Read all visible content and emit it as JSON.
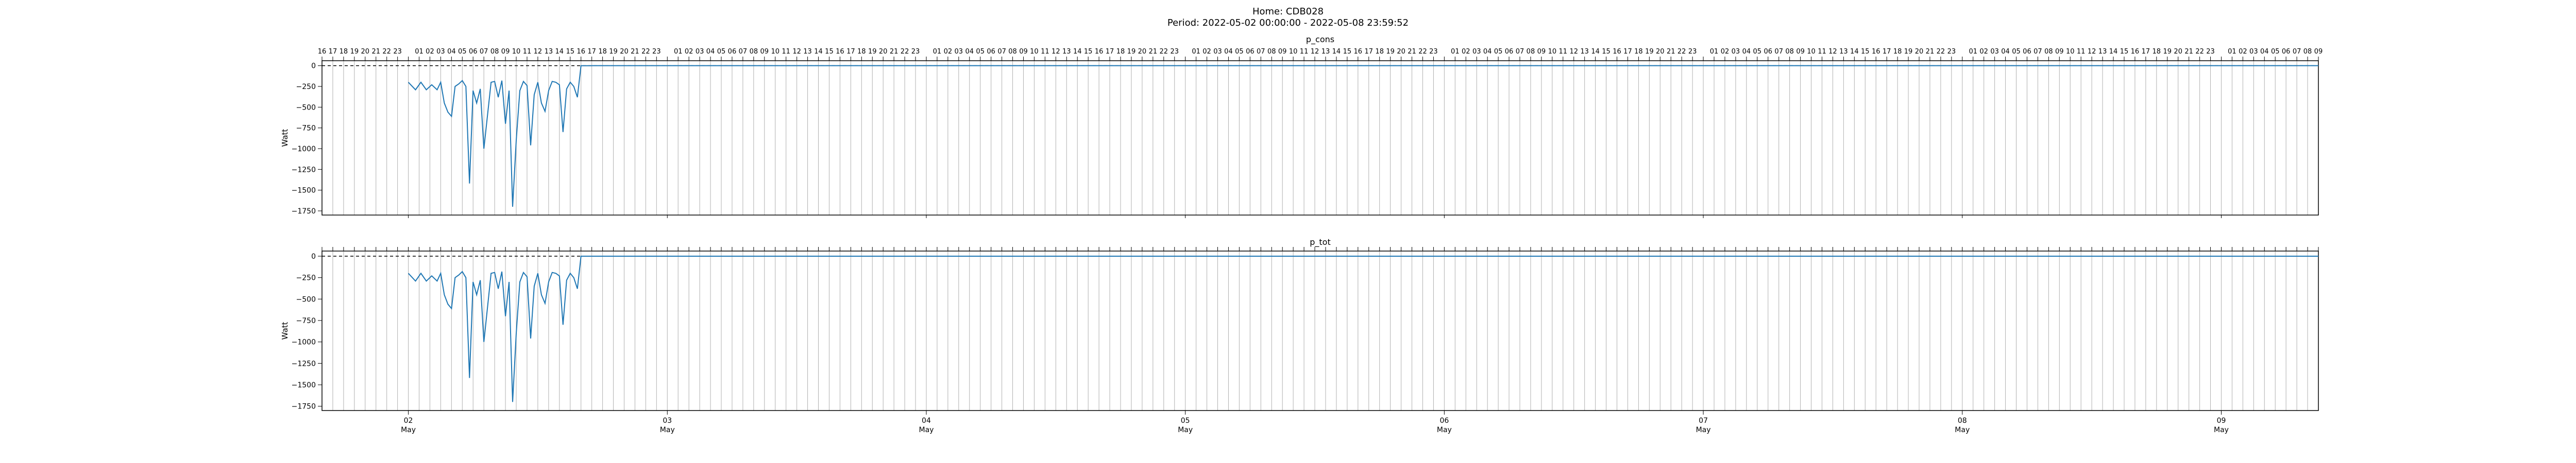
{
  "header": {
    "home": "Home: CDB028",
    "period": "Period: 2022-05-02 00:00:00 - 2022-05-08 23:59:52"
  },
  "colors": {
    "line": "#1f77b4",
    "grid": "#b0b0b0",
    "zero": "#000000",
    "frame": "#000000"
  },
  "chart_data": [
    {
      "type": "line",
      "title": "p_cons",
      "ylabel": "Watt",
      "ylim": [
        -1800,
        60
      ],
      "yticks": [
        0,
        -250,
        -500,
        -750,
        -1000,
        -1250,
        -1500,
        -1750
      ],
      "xlim": [
        "2022-05-01 16:00",
        "2022-05-09 09:00"
      ],
      "grid": "vertical, hourly",
      "zero_line": "dashed black at 0",
      "top_hour_labels": true,
      "bottom_date_labels": false,
      "series": [
        {
          "x": [
            "2022-05-02 00:00",
            "2022-05-02 00:30",
            "2022-05-02 01:00",
            "2022-05-02 01:30",
            "2022-05-02 02:00",
            "2022-05-02 02:30",
            "2022-05-02 03:00",
            "2022-05-02 03:30",
            "2022-05-02 04:00",
            "2022-05-02 04:30",
            "2022-05-02 05:00",
            "2022-05-02 05:30",
            "2022-05-02 06:00",
            "2022-05-02 06:30",
            "2022-05-02 07:00",
            "2022-05-02 07:30",
            "2022-05-02 08:00",
            "2022-05-02 08:30",
            "2022-05-02 09:00",
            "2022-05-02 09:30",
            "2022-05-02 10:00",
            "2022-05-02 10:30",
            "2022-05-02 11:00",
            "2022-05-02 11:30",
            "2022-05-02 12:00",
            "2022-05-02 12:30",
            "2022-05-02 13:00",
            "2022-05-02 13:30",
            "2022-05-02 14:00",
            "2022-05-02 14:30",
            "2022-05-02 15:00",
            "2022-05-02 15:30",
            "2022-05-02 16:00",
            "2022-05-02 16:30",
            "2022-05-02 17:00",
            "2022-05-02 17:30",
            "2022-05-02 18:00",
            "2022-05-02 18:30",
            "2022-05-02 19:00",
            "2022-05-02 19:30",
            "2022-05-02 20:00",
            "2022-05-02 20:30",
            "2022-05-02 21:00",
            "2022-05-02 21:30",
            "2022-05-02 22:00",
            "2022-05-02 22:30",
            "2022-05-02 23:00",
            "2022-05-02 23:30"
          ],
          "y": [
            0,
            0,
            0,
            0,
            0,
            0,
            0,
            0,
            0,
            0,
            0,
            0,
            0,
            0,
            0,
            0,
            0,
            0,
            0,
            0,
            0,
            0,
            0,
            0,
            0,
            0,
            0,
            0,
            0,
            0,
            0,
            0,
            0,
            0,
            0,
            0,
            0,
            0,
            0,
            0,
            0,
            0,
            0,
            0,
            0,
            0,
            0,
            0
          ],
          "note": ""
        }
      ]
    },
    {
      "type": "line",
      "title": "p_tot",
      "ylabel": "Watt",
      "ylim": [
        -1800,
        60
      ],
      "yticks": [
        0,
        -250,
        -500,
        -750,
        -1000,
        -1250,
        -1500,
        -1750
      ],
      "xlim": [
        "2022-05-01 16:00",
        "2022-05-09 09:00"
      ],
      "grid": "vertical, hourly",
      "zero_line": "dashed black at 0",
      "top_hour_labels": false,
      "bottom_date_labels": true,
      "series": [
        {
          "x": [],
          "y": []
        }
      ]
    }
  ],
  "series_points": {
    "x": [
      "2022-05-02 00:00",
      "2022-05-02 00:40",
      "2022-05-02 01:10",
      "2022-05-02 01:40",
      "2022-05-02 02:10",
      "2022-05-02 02:40",
      "2022-05-02 03:00",
      "2022-05-02 03:20",
      "2022-05-02 03:40",
      "2022-05-02 04:00",
      "2022-05-02 04:20",
      "2022-05-02 04:40",
      "2022-05-02 05:00",
      "2022-05-02 05:20",
      "2022-05-02 05:40",
      "2022-05-02 06:00",
      "2022-05-02 06:20",
      "2022-05-02 06:40",
      "2022-05-02 07:00",
      "2022-05-02 07:20",
      "2022-05-02 07:40",
      "2022-05-02 08:00",
      "2022-05-02 08:20",
      "2022-05-02 08:40",
      "2022-05-02 09:00",
      "2022-05-02 09:20",
      "2022-05-02 09:40",
      "2022-05-02 10:00",
      "2022-05-02 10:20",
      "2022-05-02 10:40",
      "2022-05-02 11:00",
      "2022-05-02 11:20",
      "2022-05-02 11:40",
      "2022-05-02 12:00",
      "2022-05-02 12:20",
      "2022-05-02 12:40",
      "2022-05-02 13:00",
      "2022-05-02 13:20",
      "2022-05-02 13:40",
      "2022-05-02 14:00",
      "2022-05-02 14:20",
      "2022-05-02 14:40",
      "2022-05-02 15:00",
      "2022-05-02 15:20",
      "2022-05-02 15:40",
      "2022-05-02 16:00",
      "2022-05-02 16:20",
      "2022-05-02 16:40",
      "2022-05-02 17:00"
    ],
    "y": [
      -200,
      -290,
      -200,
      -290,
      -230,
      -290,
      -200,
      -450,
      -560,
      -610,
      -250,
      -220,
      -180,
      -250,
      -1420,
      -300,
      -450,
      -280,
      -1000,
      -600,
      -200,
      -190,
      -380,
      -180,
      -700,
      -300,
      -1700,
      -900,
      -300,
      -190,
      -240,
      -960,
      -350,
      -200,
      -450,
      -550,
      -300,
      -190,
      -200,
      -230,
      -800,
      -280,
      -200,
      -250,
      -380,
      0,
      0,
      0,
      0
    ]
  },
  "x_ticks": {
    "hours_left_partial": [
      "16",
      "17",
      "18",
      "19",
      "20",
      "21",
      "22",
      "23"
    ],
    "hours_day": [
      "01",
      "02",
      "03",
      "04",
      "05",
      "06",
      "07",
      "08",
      "09",
      "10",
      "11",
      "12",
      "13",
      "14",
      "15",
      "16",
      "17",
      "18",
      "19",
      "20",
      "21",
      "22",
      "23"
    ],
    "hours_right_partial": [
      "01",
      "02",
      "03",
      "04",
      "05",
      "06",
      "07",
      "08"
    ],
    "dates": [
      {
        "day": "02",
        "month": "May"
      },
      {
        "day": "03",
        "month": "May"
      },
      {
        "day": "04",
        "month": "May"
      },
      {
        "day": "05",
        "month": "May"
      },
      {
        "day": "06",
        "month": "May"
      },
      {
        "day": "07",
        "month": "May"
      },
      {
        "day": "08",
        "month": "May"
      },
      {
        "day": "09",
        "month": "May"
      }
    ]
  }
}
